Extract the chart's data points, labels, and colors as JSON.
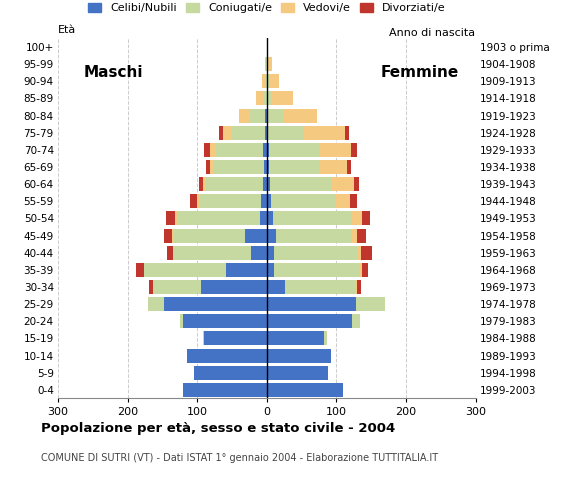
{
  "age_groups": [
    "0-4",
    "5-9",
    "10-14",
    "15-19",
    "20-24",
    "25-29",
    "30-34",
    "35-39",
    "40-44",
    "45-49",
    "50-54",
    "55-59",
    "60-64",
    "65-69",
    "70-74",
    "75-79",
    "80-84",
    "85-89",
    "90-94",
    "95-99",
    "100+"
  ],
  "birth_years": [
    "1999-2003",
    "1994-1998",
    "1989-1993",
    "1984-1988",
    "1979-1983",
    "1974-1978",
    "1969-1973",
    "1964-1968",
    "1959-1963",
    "1954-1958",
    "1949-1953",
    "1944-1948",
    "1939-1943",
    "1934-1938",
    "1929-1933",
    "1924-1928",
    "1919-1923",
    "1914-1918",
    "1909-1913",
    "1904-1908",
    "1903 o prima"
  ],
  "males_celibi": [
    120,
    105,
    115,
    90,
    120,
    148,
    95,
    58,
    22,
    32,
    10,
    8,
    5,
    4,
    5,
    3,
    2,
    0,
    0,
    0,
    0
  ],
  "males_coniugati": [
    0,
    0,
    0,
    2,
    5,
    22,
    68,
    118,
    112,
    102,
    118,
    90,
    82,
    72,
    68,
    48,
    22,
    6,
    3,
    1,
    0
  ],
  "males_vedovi": [
    0,
    0,
    0,
    0,
    0,
    0,
    0,
    0,
    1,
    2,
    4,
    3,
    4,
    5,
    9,
    12,
    16,
    9,
    4,
    1,
    0
  ],
  "males_divorziati": [
    0,
    0,
    0,
    0,
    0,
    0,
    6,
    12,
    9,
    11,
    13,
    9,
    6,
    6,
    8,
    6,
    0,
    0,
    0,
    0,
    0
  ],
  "females_nubili": [
    110,
    88,
    92,
    82,
    122,
    128,
    26,
    11,
    11,
    13,
    9,
    6,
    5,
    3,
    3,
    2,
    2,
    0,
    0,
    0,
    0
  ],
  "females_coniugate": [
    0,
    0,
    0,
    4,
    12,
    42,
    102,
    122,
    118,
    108,
    112,
    92,
    88,
    74,
    74,
    52,
    22,
    6,
    3,
    1,
    0
  ],
  "females_vedove": [
    0,
    0,
    0,
    0,
    0,
    0,
    2,
    4,
    6,
    9,
    16,
    22,
    32,
    38,
    44,
    58,
    48,
    32,
    14,
    6,
    0
  ],
  "females_divorziate": [
    0,
    0,
    0,
    0,
    0,
    0,
    6,
    9,
    16,
    13,
    11,
    9,
    7,
    6,
    9,
    6,
    0,
    0,
    0,
    0,
    0
  ],
  "colors_celibi": "#4472c4",
  "colors_coniugati": "#c5d9a0",
  "colors_vedovi": "#f5c97f",
  "colors_divorziati": "#c0362c",
  "xlim": 300,
  "xticks": [
    -300,
    -200,
    -100,
    0,
    100,
    200,
    300
  ],
  "xtick_labels": [
    "300",
    "200",
    "100",
    "0",
    "100",
    "200",
    "300"
  ],
  "title": "Popolazione per età, sesso e stato civile - 2004",
  "subtitle": "COMUNE DI SUTRI (VT) - Dati ISTAT 1° gennaio 2004 - Elaborazione TUTTITALIA.IT",
  "ylabel_left": "Età",
  "ylabel_right": "Anno di nascita",
  "label_maschi": "Maschi",
  "label_femmine": "Femmine",
  "legend_labels": [
    "Celibi/Nubili",
    "Coniugati/e",
    "Vedovi/e",
    "Divorziati/e"
  ]
}
